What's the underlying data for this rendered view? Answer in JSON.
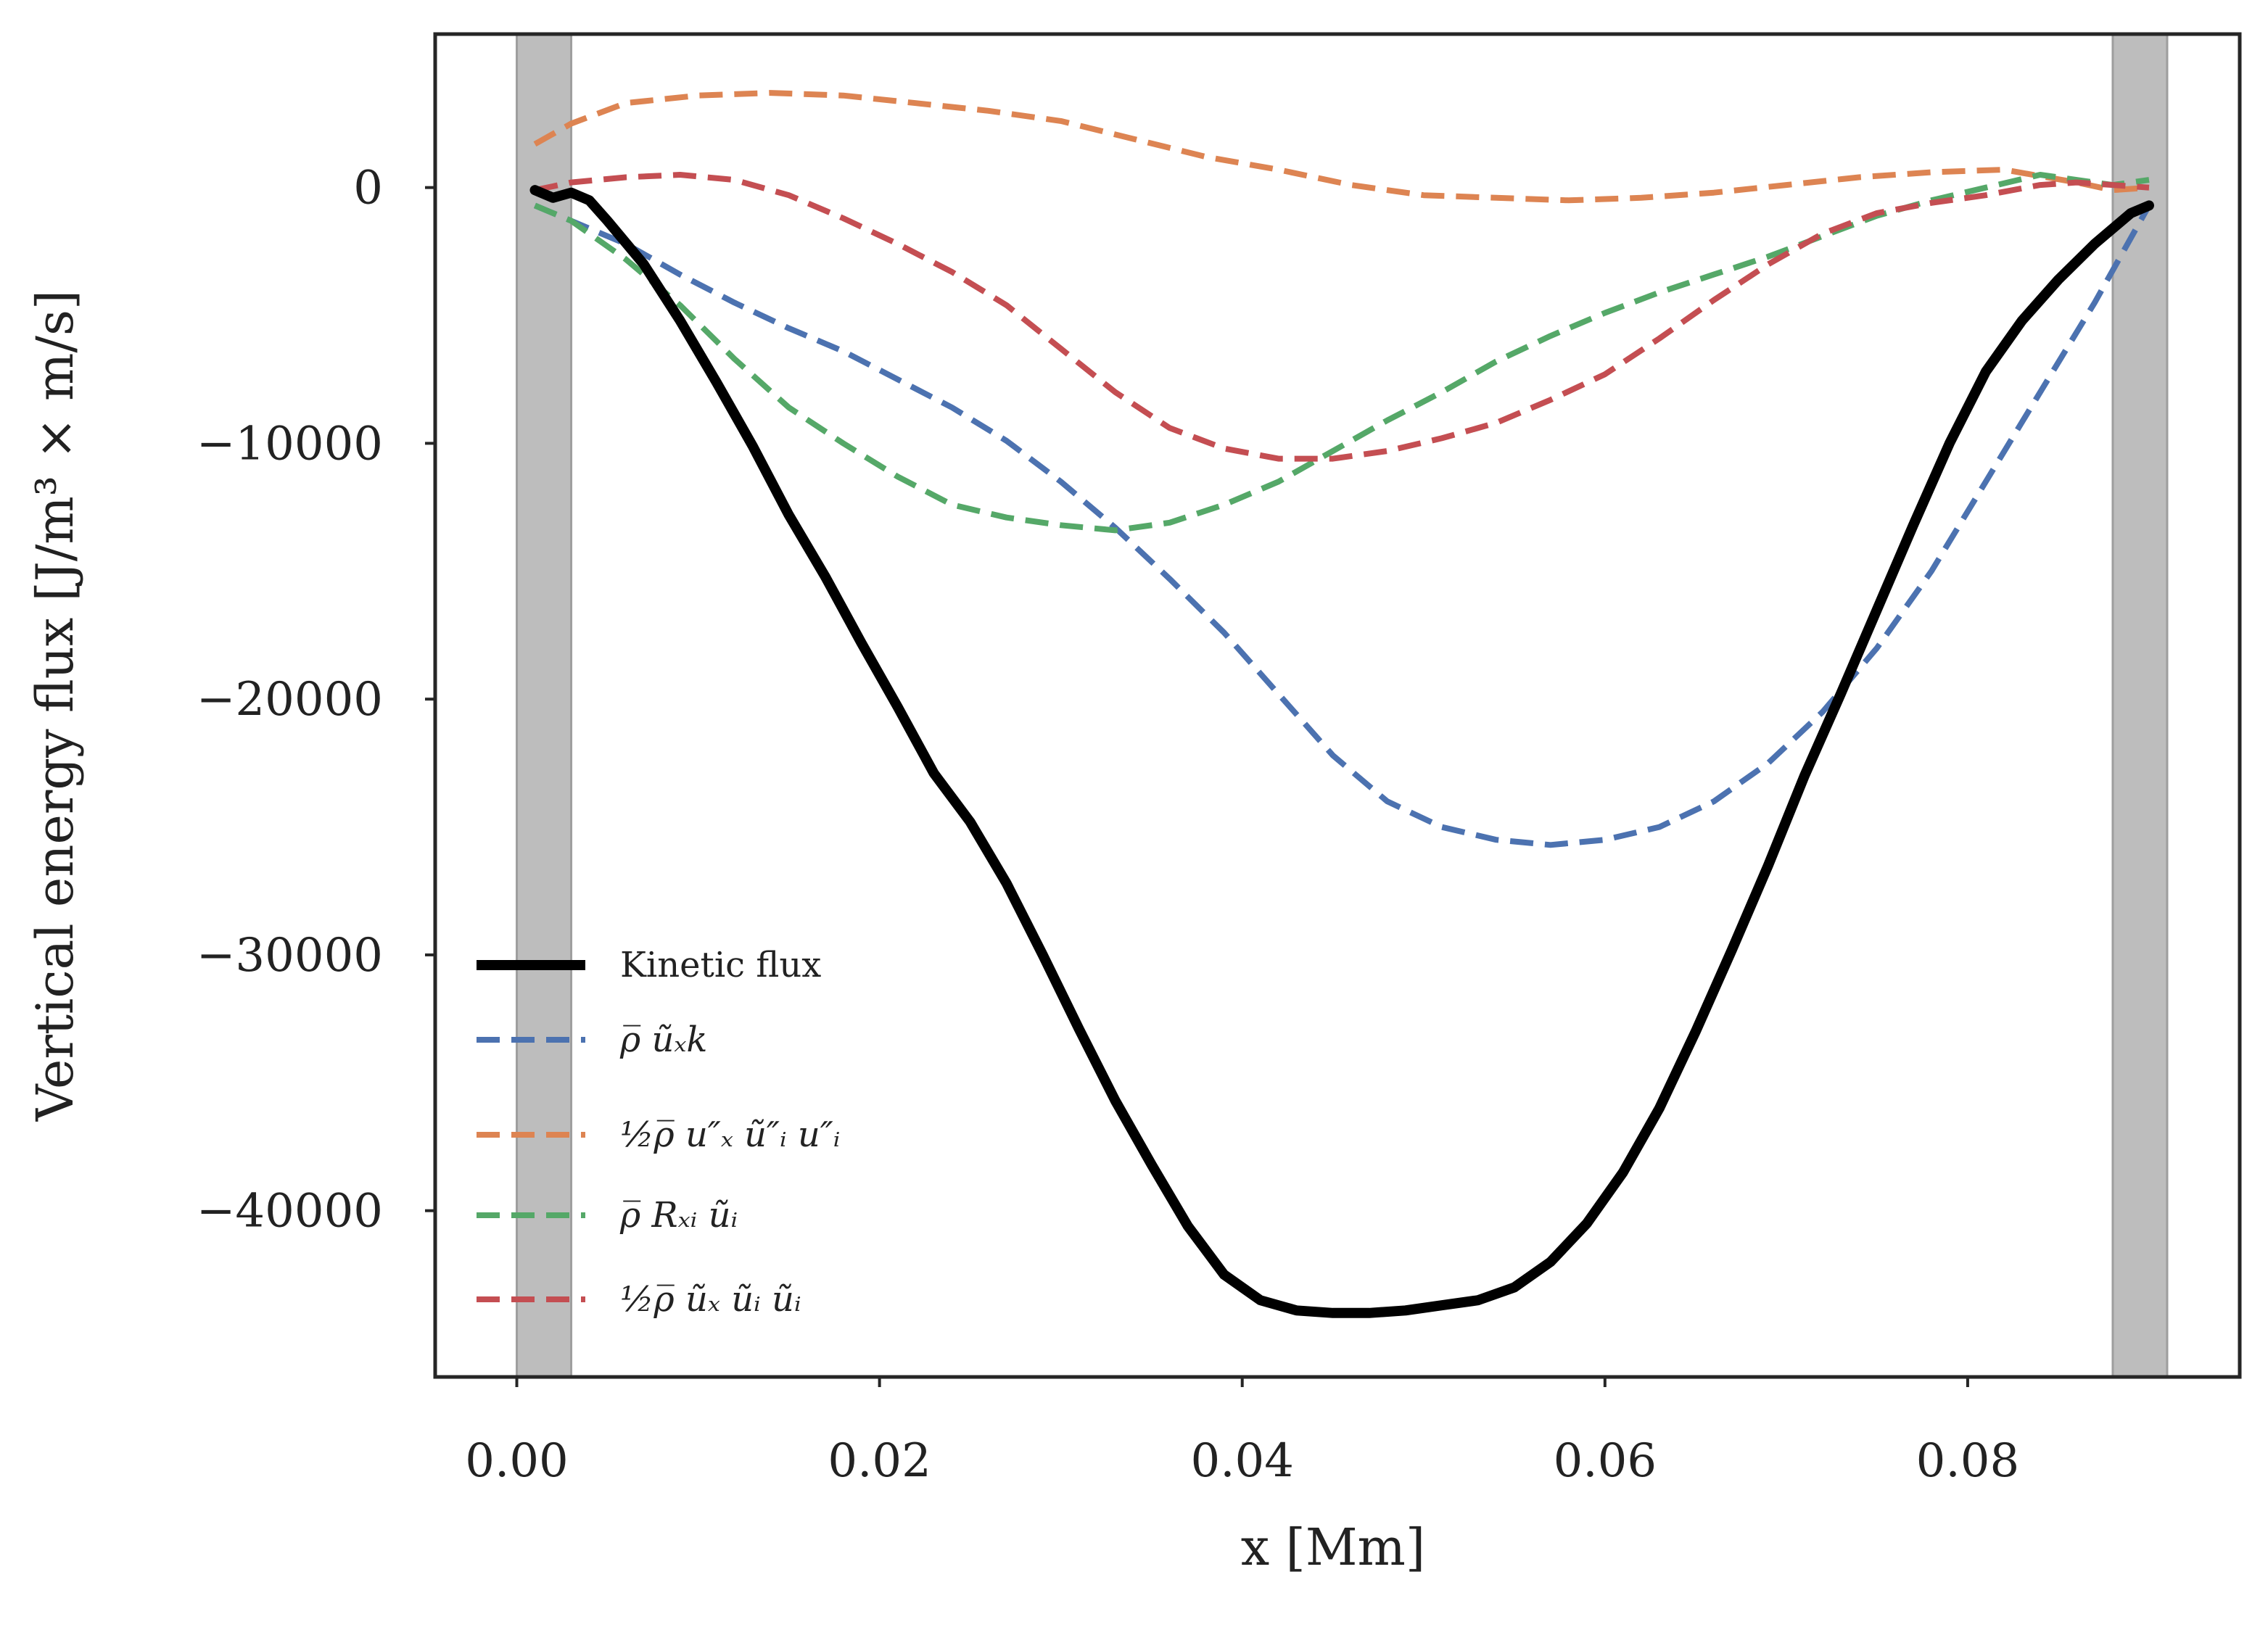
{
  "chart_data": {
    "type": "line",
    "title": "",
    "xlabel": "x [Mm]",
    "ylabel": "Vertical energy flux [J/m³ × m/s]",
    "xlim": [
      -0.0045,
      0.095
    ],
    "ylim": [
      -46500,
      6000
    ],
    "grid": false,
    "legend_position": "lower-left",
    "x_ticks": [
      0.0,
      0.02,
      0.04,
      0.06,
      0.08
    ],
    "x_tick_labels": [
      "0.00",
      "0.02",
      "0.04",
      "0.06",
      "0.08"
    ],
    "y_ticks": [
      0,
      -10000,
      -20000,
      -30000,
      -40000
    ],
    "y_tick_labels": [
      "0",
      "−10000",
      "−20000",
      "−30000",
      "−40000"
    ],
    "shaded_regions": [
      {
        "x0": 0.0,
        "x1": 0.003,
        "color": "#bdbdbd"
      },
      {
        "x0": 0.088,
        "x1": 0.091,
        "color": "#bdbdbd"
      }
    ],
    "series": [
      {
        "name": "Kinetic flux",
        "color": "#000000",
        "style": "solid",
        "x": [
          0.001,
          0.002,
          0.003,
          0.004,
          0.005,
          0.007,
          0.009,
          0.011,
          0.013,
          0.015,
          0.017,
          0.019,
          0.021,
          0.023,
          0.025,
          0.027,
          0.029,
          0.031,
          0.033,
          0.035,
          0.037,
          0.039,
          0.041,
          0.043,
          0.045,
          0.047,
          0.049,
          0.051,
          0.053,
          0.055,
          0.057,
          0.059,
          0.061,
          0.063,
          0.065,
          0.067,
          0.069,
          0.071,
          0.073,
          0.075,
          0.077,
          0.079,
          0.081,
          0.083,
          0.085,
          0.087,
          0.089,
          0.09
        ],
        "values": [
          -100,
          -400,
          -200,
          -500,
          -1300,
          -3000,
          -5200,
          -7600,
          -10100,
          -12800,
          -15200,
          -17800,
          -20300,
          -22900,
          -24800,
          -27200,
          -30000,
          -32900,
          -35700,
          -38200,
          -40600,
          -42500,
          -43500,
          -43900,
          -44000,
          -44000,
          -43900,
          -43700,
          -43500,
          -43000,
          -42000,
          -40500,
          -38500,
          -36000,
          -33000,
          -29800,
          -26500,
          -23000,
          -19800,
          -16500,
          -13200,
          -10000,
          -7200,
          -5200,
          -3600,
          -2200,
          -1000,
          -700
        ]
      },
      {
        "name": "ρ̅ ũₓk",
        "color": "#4c72b0",
        "style": "dashed",
        "x": [
          0.001,
          0.003,
          0.006,
          0.009,
          0.012,
          0.015,
          0.018,
          0.021,
          0.024,
          0.027,
          0.03,
          0.033,
          0.036,
          0.039,
          0.042,
          0.045,
          0.048,
          0.051,
          0.054,
          0.057,
          0.06,
          0.063,
          0.066,
          0.069,
          0.072,
          0.075,
          0.078,
          0.081,
          0.084,
          0.087,
          0.09
        ],
        "values": [
          -700,
          -1300,
          -2200,
          -3400,
          -4500,
          -5500,
          -6400,
          -7500,
          -8600,
          -9900,
          -11500,
          -13300,
          -15300,
          -17400,
          -19800,
          -22200,
          -24000,
          -25000,
          -25500,
          -25700,
          -25500,
          -25000,
          -24000,
          -22500,
          -20500,
          -18000,
          -15000,
          -11500,
          -8000,
          -4500,
          -700
        ]
      },
      {
        "name": "½ρ̅ u″ₓ ũ″ᵢ u″ᵢ",
        "color": "#dd8452",
        "style": "dashed",
        "x": [
          0.001,
          0.003,
          0.006,
          0.01,
          0.014,
          0.018,
          0.022,
          0.026,
          0.03,
          0.034,
          0.038,
          0.042,
          0.046,
          0.05,
          0.054,
          0.058,
          0.062,
          0.066,
          0.07,
          0.074,
          0.078,
          0.082,
          0.086,
          0.088,
          0.09
        ],
        "values": [
          1700,
          2500,
          3300,
          3600,
          3700,
          3600,
          3300,
          3000,
          2600,
          1900,
          1200,
          700,
          100,
          -300,
          -400,
          -500,
          -400,
          -200,
          100,
          400,
          600,
          700,
          200,
          -100,
          0
        ]
      },
      {
        "name": "ρ̅ Rₓᵢ ũᵢ",
        "color": "#55a868",
        "style": "dashed",
        "x": [
          0.001,
          0.003,
          0.006,
          0.009,
          0.012,
          0.015,
          0.018,
          0.021,
          0.024,
          0.027,
          0.03,
          0.033,
          0.036,
          0.039,
          0.042,
          0.045,
          0.048,
          0.051,
          0.054,
          0.057,
          0.06,
          0.063,
          0.066,
          0.069,
          0.072,
          0.075,
          0.078,
          0.081,
          0.084,
          0.086,
          0.088,
          0.09
        ],
        "values": [
          -700,
          -1300,
          -2800,
          -4600,
          -6700,
          -8600,
          -10000,
          -11300,
          -12400,
          -12900,
          -13200,
          -13400,
          -13100,
          -12400,
          -11500,
          -10300,
          -9100,
          -8000,
          -6800,
          -5800,
          -4900,
          -4100,
          -3400,
          -2700,
          -1900,
          -1100,
          -500,
          0,
          500,
          300,
          100,
          300
        ]
      },
      {
        "name": "½ρ̅ ũₓ ũᵢ ũᵢ",
        "color": "#c44e52",
        "style": "dashed",
        "x": [
          0.001,
          0.003,
          0.006,
          0.009,
          0.012,
          0.015,
          0.018,
          0.021,
          0.024,
          0.027,
          0.03,
          0.033,
          0.036,
          0.039,
          0.042,
          0.045,
          0.048,
          0.051,
          0.054,
          0.057,
          0.06,
          0.063,
          0.066,
          0.069,
          0.072,
          0.075,
          0.078,
          0.081,
          0.084,
          0.086,
          0.088,
          0.09
        ],
        "values": [
          -100,
          200,
          400,
          500,
          300,
          -300,
          -1200,
          -2200,
          -3300,
          -4600,
          -6300,
          -8000,
          -9400,
          -10200,
          -10600,
          -10600,
          -10300,
          -9800,
          -9200,
          -8300,
          -7300,
          -5900,
          -4400,
          -3000,
          -1800,
          -1000,
          -600,
          -300,
          100,
          200,
          100,
          0
        ]
      }
    ]
  }
}
